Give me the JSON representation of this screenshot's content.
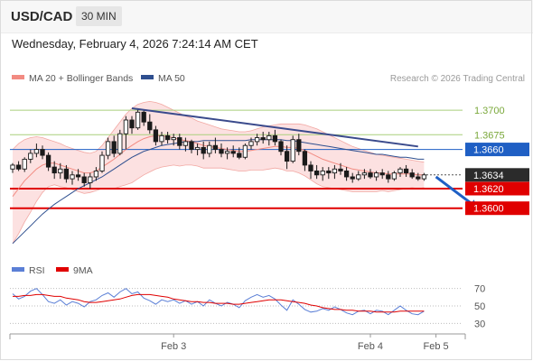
{
  "header": {
    "symbol": "USD/CAD",
    "timeframe": "30 MIN",
    "timestamp": "Wednesday, February 4, 2026 7:24:14 AM CET"
  },
  "credit": "Research © 2026 Trading Central",
  "chart_data": [
    {
      "type": "candlestick",
      "legend": [
        {
          "label": "MA 20 + Bollinger Bands",
          "color": "#f28b82"
        },
        {
          "label": "MA 50",
          "color": "#2f4f8f"
        }
      ],
      "legend_placement": "top-left",
      "ylim": [
        1.355,
        1.3725
      ],
      "levels": [
        {
          "value": 1.37,
          "label": "1.3700",
          "color": "#8cb84f",
          "style": "green-line"
        },
        {
          "value": 1.3675,
          "label": "1.3675",
          "color": "#8cb84f",
          "style": "green-line"
        },
        {
          "value": 1.366,
          "label": "1.3660",
          "color": "#1f5fc4",
          "style": "blue-box"
        },
        {
          "value": 1.3634,
          "label": "1.3634",
          "color": "#2b2b2b",
          "style": "last-price"
        },
        {
          "value": 1.362,
          "label": "1.3620",
          "color": "#e00000",
          "style": "red-box"
        },
        {
          "value": 1.36,
          "label": "1.3600",
          "color": "#e00000",
          "style": "red-box"
        }
      ],
      "trendline": {
        "from": {
          "i": 20,
          "price": 1.3702
        },
        "to": {
          "i": 68,
          "price": 1.3663
        },
        "color": "#3a4a8c"
      },
      "arrow": {
        "from": {
          "i": 71,
          "price": 1.3632
        },
        "to": {
          "i": 78,
          "price": 1.36
        },
        "color": "#1f5fc4"
      },
      "x_tick_labels": [
        {
          "label": "Feb 3",
          "i": 27
        },
        {
          "label": "Feb 4",
          "i": 60
        },
        {
          "label": "Feb 5",
          "i": 71
        }
      ],
      "x_count": 80,
      "candles": [
        [
          1.364,
          1.3646,
          1.3636,
          1.3644
        ],
        [
          1.3644,
          1.3648,
          1.3638,
          1.364
        ],
        [
          1.364,
          1.3652,
          1.3637,
          1.365
        ],
        [
          1.365,
          1.366,
          1.3646,
          1.3656
        ],
        [
          1.3656,
          1.3666,
          1.3652,
          1.366
        ],
        [
          1.366,
          1.3664,
          1.365,
          1.3654
        ],
        [
          1.3654,
          1.3657,
          1.3638,
          1.3642
        ],
        [
          1.3642,
          1.3648,
          1.363,
          1.3636
        ],
        [
          1.3636,
          1.3646,
          1.363,
          1.364
        ],
        [
          1.364,
          1.3644,
          1.3626,
          1.363
        ],
        [
          1.363,
          1.3638,
          1.3624,
          1.3634
        ],
        [
          1.3634,
          1.364,
          1.3628,
          1.3632
        ],
        [
          1.3632,
          1.3636,
          1.3622,
          1.3626
        ],
        [
          1.3626,
          1.3636,
          1.362,
          1.3632
        ],
        [
          1.3632,
          1.3642,
          1.3628,
          1.3638
        ],
        [
          1.3638,
          1.3658,
          1.3636,
          1.3654
        ],
        [
          1.3654,
          1.3672,
          1.365,
          1.3668
        ],
        [
          1.3668,
          1.3674,
          1.3652,
          1.3656
        ],
        [
          1.3656,
          1.368,
          1.3654,
          1.3676
        ],
        [
          1.3676,
          1.3694,
          1.366,
          1.369
        ],
        [
          1.369,
          1.3694,
          1.3676,
          1.3682
        ],
        [
          1.3682,
          1.3702,
          1.368,
          1.3698
        ],
        [
          1.3698,
          1.37,
          1.3684,
          1.3688
        ],
        [
          1.3688,
          1.3696,
          1.3676,
          1.368
        ],
        [
          1.368,
          1.3684,
          1.3664,
          1.3668
        ],
        [
          1.3668,
          1.3678,
          1.3664,
          1.3674
        ],
        [
          1.3674,
          1.3678,
          1.3666,
          1.367
        ],
        [
          1.367,
          1.3676,
          1.3664,
          1.3672
        ],
        [
          1.3672,
          1.3676,
          1.366,
          1.3664
        ],
        [
          1.3664,
          1.3672,
          1.3658,
          1.3668
        ],
        [
          1.3668,
          1.367,
          1.3656,
          1.366
        ],
        [
          1.366,
          1.3666,
          1.3654,
          1.3662
        ],
        [
          1.3662,
          1.3668,
          1.365,
          1.3656
        ],
        [
          1.3656,
          1.3668,
          1.3652,
          1.3664
        ],
        [
          1.3664,
          1.3672,
          1.3656,
          1.366
        ],
        [
          1.366,
          1.3666,
          1.3652,
          1.3656
        ],
        [
          1.3656,
          1.3662,
          1.365,
          1.3658
        ],
        [
          1.3658,
          1.3664,
          1.3652,
          1.3656
        ],
        [
          1.3656,
          1.3662,
          1.365,
          1.3652
        ],
        [
          1.3652,
          1.3666,
          1.365,
          1.3664
        ],
        [
          1.3664,
          1.3672,
          1.366,
          1.3668
        ],
        [
          1.3668,
          1.3676,
          1.3664,
          1.3672
        ],
        [
          1.3672,
          1.3678,
          1.3666,
          1.367
        ],
        [
          1.367,
          1.3678,
          1.3664,
          1.3674
        ],
        [
          1.3674,
          1.368,
          1.3664,
          1.3668
        ],
        [
          1.3668,
          1.367,
          1.3654,
          1.3658
        ],
        [
          1.3658,
          1.3664,
          1.364,
          1.3648
        ],
        [
          1.3648,
          1.3674,
          1.3646,
          1.367
        ],
        [
          1.367,
          1.3676,
          1.3654,
          1.3658
        ],
        [
          1.3658,
          1.366,
          1.3638,
          1.3644
        ],
        [
          1.3644,
          1.3648,
          1.363,
          1.3638
        ],
        [
          1.3638,
          1.3644,
          1.363,
          1.3634
        ],
        [
          1.3634,
          1.3642,
          1.3628,
          1.3638
        ],
        [
          1.3638,
          1.3642,
          1.363,
          1.3636
        ],
        [
          1.3636,
          1.3644,
          1.363,
          1.364
        ],
        [
          1.364,
          1.3646,
          1.3634,
          1.3638
        ],
        [
          1.3638,
          1.3642,
          1.3628,
          1.3632
        ],
        [
          1.3632,
          1.3636,
          1.3626,
          1.363
        ],
        [
          1.363,
          1.3638,
          1.3628,
          1.3634
        ],
        [
          1.3634,
          1.364,
          1.363,
          1.3636
        ],
        [
          1.3636,
          1.364,
          1.363,
          1.3632
        ],
        [
          1.3632,
          1.3638,
          1.3628,
          1.3636
        ],
        [
          1.3636,
          1.364,
          1.363,
          1.3634
        ],
        [
          1.3634,
          1.3638,
          1.3626,
          1.363
        ],
        [
          1.363,
          1.3638,
          1.3628,
          1.3636
        ],
        [
          1.3636,
          1.3642,
          1.3632,
          1.364
        ],
        [
          1.364,
          1.3644,
          1.3632,
          1.3636
        ],
        [
          1.3636,
          1.364,
          1.363,
          1.3632
        ],
        [
          1.3632,
          1.3636,
          1.3628,
          1.363
        ],
        [
          1.363,
          1.3636,
          1.3628,
          1.3634
        ]
      ],
      "ma20": [
        1.3612,
        1.362,
        1.3628,
        1.3634,
        1.364,
        1.3644,
        1.3646,
        1.3646,
        1.3644,
        1.3642,
        1.364,
        1.3638,
        1.3636,
        1.3636,
        1.3638,
        1.3642,
        1.3646,
        1.365,
        1.3655,
        1.366,
        1.3664,
        1.3668,
        1.3671,
        1.3673,
        1.3674,
        1.3674,
        1.3673,
        1.3672,
        1.367,
        1.3669,
        1.3668,
        1.3666,
        1.3664,
        1.3663,
        1.3662,
        1.3661,
        1.366,
        1.3659,
        1.3658,
        1.3658,
        1.3659,
        1.366,
        1.3661,
        1.3662,
        1.3663,
        1.3663,
        1.3662,
        1.3662,
        1.3661,
        1.3659,
        1.3656,
        1.3653,
        1.365,
        1.3648,
        1.3646,
        1.3644,
        1.3642,
        1.364,
        1.3639,
        1.3638,
        1.3637,
        1.3636,
        1.3636,
        1.3635,
        1.3635,
        1.3635,
        1.3635,
        1.3635,
        1.3634,
        1.3634
      ],
      "bb_upper": [
        1.366,
        1.3666,
        1.367,
        1.3672,
        1.3673,
        1.3672,
        1.367,
        1.3668,
        1.3666,
        1.3663,
        1.3661,
        1.3659,
        1.3657,
        1.3656,
        1.3658,
        1.3664,
        1.3672,
        1.368,
        1.3688,
        1.3696,
        1.3702,
        1.3706,
        1.3708,
        1.3709,
        1.3708,
        1.3706,
        1.3703,
        1.37,
        1.3697,
        1.3694,
        1.3692,
        1.3689,
        1.3687,
        1.3685,
        1.3683,
        1.3681,
        1.368,
        1.3679,
        1.3678,
        1.3678,
        1.3679,
        1.3681,
        1.3683,
        1.3684,
        1.3685,
        1.3686,
        1.3686,
        1.3686,
        1.3686,
        1.3685,
        1.3683,
        1.3681,
        1.3678,
        1.3675,
        1.3672,
        1.3669,
        1.3666,
        1.3663,
        1.3661,
        1.3659,
        1.3657,
        1.3655,
        1.3654,
        1.3653,
        1.3652,
        1.3651,
        1.365,
        1.3649,
        1.3648,
        1.3647
      ],
      "bb_lower": [
        1.3564,
        1.3574,
        1.3586,
        1.3596,
        1.3607,
        1.3616,
        1.3622,
        1.3624,
        1.3622,
        1.3621,
        1.3619,
        1.3617,
        1.3615,
        1.3616,
        1.3618,
        1.362,
        1.362,
        1.362,
        1.3622,
        1.3624,
        1.3626,
        1.363,
        1.3634,
        1.3637,
        1.364,
        1.3642,
        1.3643,
        1.3644,
        1.3643,
        1.3644,
        1.3644,
        1.3643,
        1.3641,
        1.3641,
        1.3641,
        1.3641,
        1.364,
        1.3639,
        1.3638,
        1.3638,
        1.3639,
        1.3639,
        1.3639,
        1.364,
        1.3641,
        1.364,
        1.3638,
        1.3638,
        1.3636,
        1.3633,
        1.3629,
        1.3625,
        1.3622,
        1.3621,
        1.362,
        1.3619,
        1.3618,
        1.3617,
        1.3617,
        1.3617,
        1.3617,
        1.3617,
        1.3618,
        1.3617,
        1.3618,
        1.3619,
        1.362,
        1.3621,
        1.362,
        1.3621
      ],
      "ma50": [
        1.3564,
        1.357,
        1.3576,
        1.3582,
        1.3588,
        1.3594,
        1.3599,
        1.3604,
        1.3608,
        1.3612,
        1.3616,
        1.362,
        1.3623,
        1.3626,
        1.3629,
        1.3632,
        1.3636,
        1.364,
        1.3644,
        1.3648,
        1.3652,
        1.3655,
        1.3658,
        1.366,
        1.3662,
        1.3664,
        1.3665,
        1.3666,
        1.3667,
        1.3668,
        1.3668,
        1.3668,
        1.3669,
        1.3669,
        1.3669,
        1.3669,
        1.3669,
        1.3669,
        1.3669,
        1.3669,
        1.367,
        1.367,
        1.367,
        1.367,
        1.367,
        1.367,
        1.3669,
        1.3669,
        1.3668,
        1.3667,
        1.3666,
        1.3665,
        1.3664,
        1.3663,
        1.3662,
        1.3661,
        1.366,
        1.3659,
        1.3658,
        1.3657,
        1.3656,
        1.3655,
        1.3655,
        1.3654,
        1.3653,
        1.3652,
        1.3652,
        1.3651,
        1.365,
        1.365
      ]
    },
    {
      "type": "line",
      "legend": [
        {
          "label": "RSI",
          "color": "#5b7fd6"
        },
        {
          "label": "9MA",
          "color": "#e00000"
        }
      ],
      "ylim": [
        20,
        80
      ],
      "y_ticks": [
        70,
        50,
        30
      ],
      "rsi": [
        64,
        58,
        61,
        67,
        70,
        63,
        55,
        53,
        57,
        51,
        55,
        53,
        49,
        55,
        57,
        62,
        65,
        60,
        66,
        70,
        64,
        66,
        59,
        56,
        52,
        57,
        55,
        57,
        53,
        56,
        52,
        55,
        50,
        57,
        53,
        50,
        54,
        52,
        48,
        56,
        60,
        63,
        60,
        62,
        58,
        51,
        45,
        57,
        52,
        46,
        43,
        44,
        47,
        45,
        49,
        46,
        42,
        40,
        44,
        45,
        41,
        45,
        44,
        40,
        45,
        50,
        45,
        41,
        40,
        44
      ],
      "ma9": [
        61,
        61,
        62,
        62,
        63,
        63,
        62,
        61,
        61,
        59,
        58,
        57,
        55,
        54,
        54,
        55,
        56,
        57,
        58,
        60,
        62,
        63,
        63,
        63,
        62,
        61,
        60,
        58,
        57,
        56,
        55,
        55,
        54,
        54,
        53,
        53,
        53,
        52,
        52,
        53,
        54,
        55,
        56,
        57,
        57,
        57,
        56,
        55,
        54,
        53,
        51,
        50,
        48,
        47,
        46,
        46,
        45,
        45,
        44,
        44,
        44,
        43,
        43,
        43,
        43,
        44,
        44,
        44,
        44,
        44
      ]
    }
  ]
}
